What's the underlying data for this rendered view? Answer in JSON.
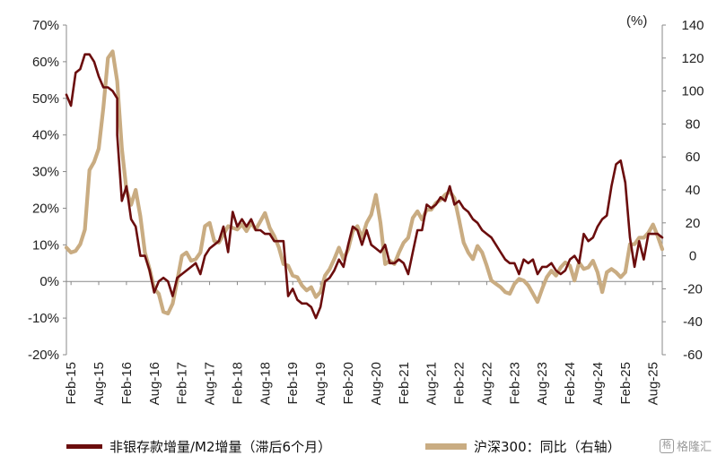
{
  "chart_data": {
    "type": "line",
    "title": "",
    "right_axis_unit": "(%)",
    "x_tick_labels": [
      "Feb-15",
      "Aug-15",
      "Feb-16",
      "Aug-16",
      "Feb-17",
      "Aug-17",
      "Feb-18",
      "Aug-18",
      "Feb-19",
      "Aug-19",
      "Feb-20",
      "Aug-20",
      "Feb-21",
      "Aug-21",
      "Feb-22",
      "Aug-22",
      "Feb-23",
      "Aug-23",
      "Feb-24",
      "Aug-24",
      "Feb-25",
      "Aug-25"
    ],
    "x_range": [
      "2015-01",
      "2025-10"
    ],
    "y_left": {
      "ticks": [
        "70%",
        "60%",
        "50%",
        "40%",
        "30%",
        "20%",
        "10%",
        "0%",
        "-10%",
        "-20%"
      ],
      "range": [
        -20,
        70
      ]
    },
    "y_right": {
      "ticks": [
        "140",
        "120",
        "100",
        "80",
        "60",
        "40",
        "20",
        "0",
        "-20",
        "-40",
        "-60"
      ],
      "range": [
        -60,
        140
      ]
    },
    "series": [
      {
        "name": "非银存款增量/M2增量（滞后6个月）",
        "axis": "left",
        "color": "#6b0d0d",
        "points": [
          [
            "2015-01",
            51
          ],
          [
            "2015-02",
            48
          ],
          [
            "2015-03",
            57
          ],
          [
            "2015-04",
            58
          ],
          [
            "2015-05",
            62
          ],
          [
            "2015-06",
            62
          ],
          [
            "2015-07",
            60
          ],
          [
            "2015-08",
            56
          ],
          [
            "2015-09",
            53
          ],
          [
            "2015-10",
            53
          ],
          [
            "2015-11",
            52
          ],
          [
            "2015-12",
            50
          ],
          [
            "2015-12",
            40
          ],
          [
            "2016-01",
            22
          ],
          [
            "2016-02",
            26
          ],
          [
            "2016-03",
            17
          ],
          [
            "2016-04",
            15
          ],
          [
            "2016-05",
            7
          ],
          [
            "2016-06",
            7
          ],
          [
            "2016-07",
            3
          ],
          [
            "2016-08",
            -3
          ],
          [
            "2016-09",
            0
          ],
          [
            "2016-10",
            1
          ],
          [
            "2016-11",
            0
          ],
          [
            "2016-12",
            -4
          ],
          [
            "2017-01",
            1
          ],
          [
            "2017-02",
            2
          ],
          [
            "2017-03",
            3
          ],
          [
            "2017-04",
            4
          ],
          [
            "2017-05",
            5
          ],
          [
            "2017-06",
            2
          ],
          [
            "2017-07",
            7
          ],
          [
            "2017-08",
            9
          ],
          [
            "2017-09",
            10
          ],
          [
            "2017-10",
            11
          ],
          [
            "2017-11",
            15
          ],
          [
            "2017-12",
            8
          ],
          [
            "2018-01",
            19
          ],
          [
            "2018-02",
            15
          ],
          [
            "2018-03",
            17
          ],
          [
            "2018-04",
            15
          ],
          [
            "2018-05",
            17
          ],
          [
            "2018-06",
            14
          ],
          [
            "2018-07",
            14
          ],
          [
            "2018-08",
            13
          ],
          [
            "2018-09",
            13
          ],
          [
            "2018-10",
            11
          ],
          [
            "2018-11",
            11
          ],
          [
            "2018-12",
            11
          ],
          [
            "2019-01",
            -4
          ],
          [
            "2019-02",
            -2
          ],
          [
            "2019-03",
            -5
          ],
          [
            "2019-04",
            -6
          ],
          [
            "2019-05",
            -6
          ],
          [
            "2019-06",
            -7
          ],
          [
            "2019-07",
            -10
          ],
          [
            "2019-08",
            -7
          ],
          [
            "2019-09",
            0
          ],
          [
            "2019-10",
            1
          ],
          [
            "2019-11",
            3
          ],
          [
            "2019-12",
            6
          ],
          [
            "2020-01",
            4
          ],
          [
            "2020-02",
            10
          ],
          [
            "2020-03",
            15
          ],
          [
            "2020-04",
            14
          ],
          [
            "2020-05",
            10
          ],
          [
            "2020-06",
            14
          ],
          [
            "2020-07",
            10
          ],
          [
            "2020-08",
            9
          ],
          [
            "2020-09",
            8
          ],
          [
            "2020-10",
            10
          ],
          [
            "2020-11",
            5
          ],
          [
            "2020-12",
            5
          ],
          [
            "2021-01",
            6
          ],
          [
            "2021-02",
            5
          ],
          [
            "2021-03",
            2
          ],
          [
            "2021-04",
            8
          ],
          [
            "2021-05",
            14
          ],
          [
            "2021-06",
            14
          ],
          [
            "2021-07",
            21
          ],
          [
            "2021-08",
            20
          ],
          [
            "2021-09",
            21
          ],
          [
            "2021-10",
            23
          ],
          [
            "2021-11",
            22
          ],
          [
            "2021-12",
            26
          ],
          [
            "2022-01",
            21
          ],
          [
            "2022-02",
            22
          ],
          [
            "2022-03",
            20
          ],
          [
            "2022-04",
            19
          ],
          [
            "2022-05",
            17
          ],
          [
            "2022-06",
            16
          ],
          [
            "2022-07",
            14
          ],
          [
            "2022-08",
            13
          ],
          [
            "2022-09",
            12
          ],
          [
            "2022-10",
            10
          ],
          [
            "2022-11",
            8
          ],
          [
            "2022-12",
            6
          ],
          [
            "2023-01",
            5
          ],
          [
            "2023-02",
            5
          ],
          [
            "2023-03",
            2
          ],
          [
            "2023-04",
            6
          ],
          [
            "2023-05",
            5
          ],
          [
            "2023-06",
            6
          ],
          [
            "2023-07",
            2
          ],
          [
            "2023-08",
            4
          ],
          [
            "2023-09",
            4
          ],
          [
            "2023-10",
            5
          ],
          [
            "2023-11",
            3
          ],
          [
            "2023-12",
            2
          ],
          [
            "2024-01",
            3
          ],
          [
            "2024-02",
            6
          ],
          [
            "2024-03",
            7
          ],
          [
            "2024-04",
            5
          ],
          [
            "2024-05",
            13
          ],
          [
            "2024-06",
            11
          ],
          [
            "2024-07",
            12
          ],
          [
            "2024-08",
            15
          ],
          [
            "2024-09",
            17
          ],
          [
            "2024-10",
            18
          ],
          [
            "2024-11",
            26
          ],
          [
            "2024-12",
            32
          ],
          [
            "2025-01",
            33
          ],
          [
            "2025-02",
            27
          ],
          [
            "2025-03",
            12
          ],
          [
            "2025-04",
            4
          ],
          [
            "2025-05",
            11
          ],
          [
            "2025-06",
            6
          ],
          [
            "2025-07",
            13
          ],
          [
            "2025-08",
            13
          ],
          [
            "2025-09",
            13
          ],
          [
            "2025-10",
            12
          ]
        ]
      },
      {
        "name": "沪深300：同比（右轴）",
        "axis": "right",
        "color": "#c9ac82",
        "points": [
          [
            "2015-01",
            5
          ],
          [
            "2015-02",
            2
          ],
          [
            "2015-03",
            3
          ],
          [
            "2015-04",
            7
          ],
          [
            "2015-05",
            16
          ],
          [
            "2015-06",
            52
          ],
          [
            "2015-07",
            57
          ],
          [
            "2015-08",
            65
          ],
          [
            "2015-09",
            90
          ],
          [
            "2015-10",
            120
          ],
          [
            "2015-11",
            124
          ],
          [
            "2015-12",
            106
          ],
          [
            "2016-01",
            65
          ],
          [
            "2016-02",
            40
          ],
          [
            "2016-03",
            31
          ],
          [
            "2016-04",
            40
          ],
          [
            "2016-05",
            24
          ],
          [
            "2016-06",
            2
          ],
          [
            "2016-07",
            -8
          ],
          [
            "2016-08",
            -20
          ],
          [
            "2016-09",
            -23
          ],
          [
            "2016-10",
            -34
          ],
          [
            "2016-11",
            -35
          ],
          [
            "2016-12",
            -29
          ],
          [
            "2017-01",
            -15
          ],
          [
            "2017-02",
            0
          ],
          [
            "2017-03",
            2
          ],
          [
            "2017-04",
            -3
          ],
          [
            "2017-05",
            -2
          ],
          [
            "2017-06",
            2
          ],
          [
            "2017-07",
            18
          ],
          [
            "2017-08",
            20
          ],
          [
            "2017-09",
            9
          ],
          [
            "2017-10",
            8
          ],
          [
            "2017-11",
            13
          ],
          [
            "2017-12",
            18
          ],
          [
            "2018-01",
            17
          ],
          [
            "2018-02",
            16
          ],
          [
            "2018-03",
            19
          ],
          [
            "2018-04",
            15
          ],
          [
            "2018-05",
            20
          ],
          [
            "2018-06",
            16
          ],
          [
            "2018-07",
            21
          ],
          [
            "2018-08",
            26
          ],
          [
            "2018-09",
            17
          ],
          [
            "2018-10",
            12
          ],
          [
            "2018-11",
            5
          ],
          [
            "2018-12",
            -5
          ],
          [
            "2019-01",
            -6
          ],
          [
            "2019-02",
            -12
          ],
          [
            "2019-03",
            -13
          ],
          [
            "2019-04",
            -18
          ],
          [
            "2019-05",
            -21
          ],
          [
            "2019-06",
            -19
          ],
          [
            "2019-07",
            -25
          ],
          [
            "2019-08",
            -22
          ],
          [
            "2019-09",
            -12
          ],
          [
            "2019-10",
            -8
          ],
          [
            "2019-11",
            -2
          ],
          [
            "2019-12",
            5
          ],
          [
            "2020-01",
            -2
          ],
          [
            "2020-02",
            4
          ],
          [
            "2020-03",
            15
          ],
          [
            "2020-04",
            18
          ],
          [
            "2020-05",
            11
          ],
          [
            "2020-06",
            20
          ],
          [
            "2020-07",
            25
          ],
          [
            "2020-08",
            37
          ],
          [
            "2020-09",
            20
          ],
          [
            "2020-10",
            -5
          ],
          [
            "2020-11",
            -3
          ],
          [
            "2020-12",
            -5
          ],
          [
            "2021-01",
            2
          ],
          [
            "2021-02",
            8
          ],
          [
            "2021-03",
            11
          ],
          [
            "2021-04",
            23
          ],
          [
            "2021-05",
            27
          ],
          [
            "2021-06",
            22
          ],
          [
            "2021-07",
            28
          ],
          [
            "2021-08",
            28
          ],
          [
            "2021-09",
            32
          ],
          [
            "2021-10",
            34
          ],
          [
            "2021-11",
            37
          ],
          [
            "2021-12",
            39
          ],
          [
            "2022-01",
            35
          ],
          [
            "2022-02",
            22
          ],
          [
            "2022-03",
            8
          ],
          [
            "2022-04",
            2
          ],
          [
            "2022-05",
            -2
          ],
          [
            "2022-06",
            6
          ],
          [
            "2022-07",
            2
          ],
          [
            "2022-08",
            -6
          ],
          [
            "2022-09",
            -15
          ],
          [
            "2022-10",
            -17
          ],
          [
            "2022-11",
            -19
          ],
          [
            "2022-12",
            -22
          ],
          [
            "2023-01",
            -23
          ],
          [
            "2023-02",
            -17
          ],
          [
            "2023-03",
            -14
          ],
          [
            "2023-04",
            -15
          ],
          [
            "2023-05",
            -18
          ],
          [
            "2023-06",
            -23
          ],
          [
            "2023-07",
            -28
          ],
          [
            "2023-08",
            -20
          ],
          [
            "2023-09",
            -13
          ],
          [
            "2023-10",
            -9
          ],
          [
            "2023-11",
            -12
          ],
          [
            "2023-12",
            -7
          ],
          [
            "2024-01",
            -4
          ],
          [
            "2024-02",
            -6
          ],
          [
            "2024-03",
            -15
          ],
          [
            "2024-04",
            -4
          ],
          [
            "2024-05",
            -8
          ],
          [
            "2024-06",
            -7
          ],
          [
            "2024-07",
            -3
          ],
          [
            "2024-08",
            -10
          ],
          [
            "2024-09",
            -22
          ],
          [
            "2024-10",
            -10
          ],
          [
            "2024-11",
            -8
          ],
          [
            "2024-12",
            -10
          ],
          [
            "2025-01",
            -13
          ],
          [
            "2025-02",
            -10
          ],
          [
            "2025-03",
            7
          ],
          [
            "2025-04",
            7
          ],
          [
            "2025-05",
            11
          ],
          [
            "2025-06",
            11
          ],
          [
            "2025-07",
            14
          ],
          [
            "2025-08",
            19
          ],
          [
            "2025-09",
            12
          ],
          [
            "2025-10",
            4
          ]
        ]
      }
    ],
    "grid": false,
    "legend": "bottom"
  },
  "watermark": {
    "icon": "格",
    "text": "格隆汇"
  }
}
